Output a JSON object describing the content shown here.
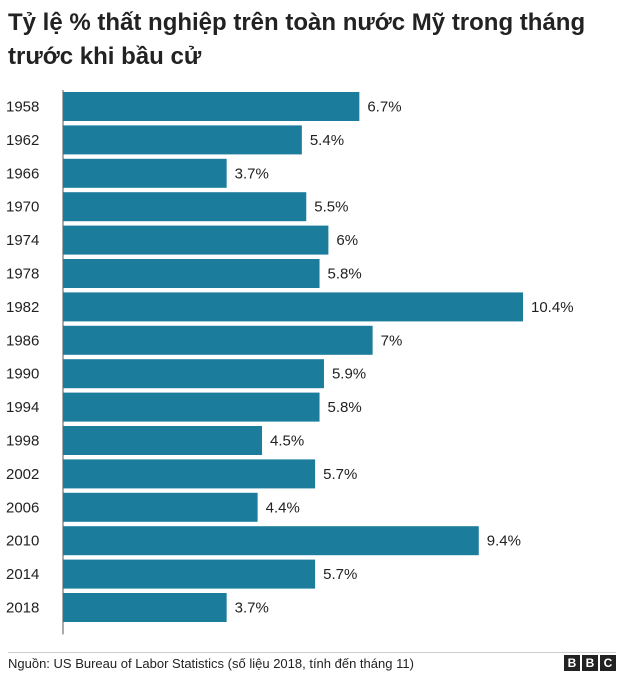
{
  "chart_data": {
    "type": "bar",
    "orientation": "horizontal",
    "title": "Tỷ lệ % thất nghiệp trên toàn nước Mỹ trong tháng trước khi bầu cử",
    "xlabel": "",
    "ylabel": "",
    "categories": [
      "1958",
      "1962",
      "1966",
      "1970",
      "1974",
      "1978",
      "1982",
      "1986",
      "1990",
      "1994",
      "1998",
      "2002",
      "2006",
      "2010",
      "2014",
      "2018"
    ],
    "values": [
      6.7,
      5.4,
      3.7,
      5.5,
      6,
      5.8,
      10.4,
      7,
      5.9,
      5.8,
      4.5,
      5.7,
      4.4,
      9.4,
      5.7,
      3.7
    ],
    "value_labels": [
      "6.7%",
      "5.4%",
      "3.7%",
      "5.5%",
      "6%",
      "5.8%",
      "10.4%",
      "7%",
      "5.9%",
      "5.8%",
      "4.5%",
      "5.7%",
      "4.4%",
      "9.4%",
      "5.7%",
      "3.7%"
    ],
    "xlim": [
      0,
      10.4
    ],
    "bar_color": "#1b7c9c",
    "grid": false,
    "legend": "none"
  },
  "footer": {
    "source": "Nguồn: US Bureau of Labor Statistics (số liệu 2018, tính đến tháng 11)",
    "logo_letters": [
      "B",
      "B",
      "C"
    ]
  }
}
